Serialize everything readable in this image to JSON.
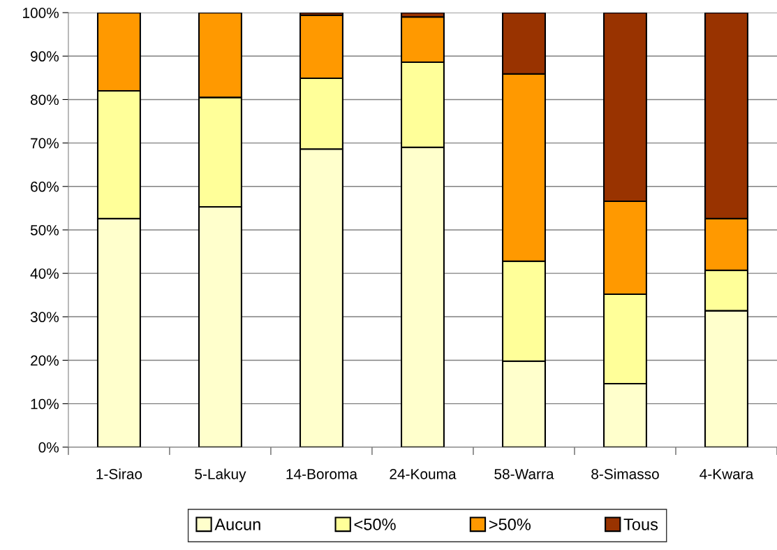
{
  "chart_data": {
    "type": "bar",
    "stacked": true,
    "categories": [
      "1-Sirao",
      "5-Lakuy",
      "14-Boroma",
      "24-Kouma",
      "58-Warra",
      "8-Simasso",
      "4-Kwara"
    ],
    "series": [
      {
        "name": "Aucun",
        "color": "#ffffcc",
        "values": [
          52.6,
          55.3,
          68.6,
          69.0,
          19.8,
          14.6,
          31.4
        ]
      },
      {
        "name": "<50%",
        "color": "#ffff99",
        "values": [
          29.4,
          25.2,
          16.3,
          19.6,
          23.0,
          20.6,
          9.3
        ]
      },
      {
        "name": ">50%",
        "color": "#ff9900",
        "values": [
          18.0,
          19.5,
          14.5,
          10.4,
          43.1,
          21.4,
          11.9
        ]
      },
      {
        "name": "Tous",
        "color": "#993300",
        "values": [
          null,
          null,
          0.6,
          1.0,
          14.1,
          43.4,
          47.4
        ]
      }
    ],
    "ylim": [
      0,
      100
    ],
    "yticks": [
      {
        "value": 0,
        "label": "0%"
      },
      {
        "value": 10,
        "label": "10%"
      },
      {
        "value": 20,
        "label": "20%"
      },
      {
        "value": 30,
        "label": "30%"
      },
      {
        "value": 40,
        "label": "40%"
      },
      {
        "value": 50,
        "label": "50%"
      },
      {
        "value": 60,
        "label": "60%"
      },
      {
        "value": 70,
        "label": "70%"
      },
      {
        "value": 80,
        "label": "80%"
      },
      {
        "value": 90,
        "label": "90%"
      },
      {
        "value": 100,
        "label": "100%"
      }
    ],
    "grid": "y",
    "legend": "bottom"
  }
}
